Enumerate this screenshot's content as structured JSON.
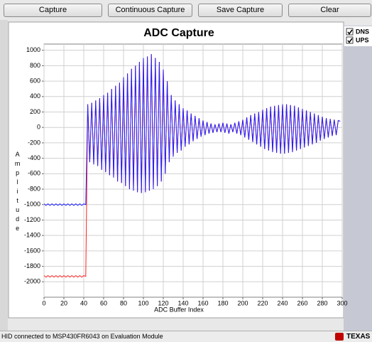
{
  "buttons": [
    "Capture",
    "Continuous Capture",
    "Save Capture",
    "Clear"
  ],
  "chart_data": {
    "type": "line",
    "title": "ADC Capture",
    "x_label": "ADC Buffer Index",
    "y_label": "Amplitude",
    "xlim": [
      0,
      300
    ],
    "ylim": [
      -2200,
      1080
    ],
    "xticks": [
      0,
      20,
      40,
      60,
      80,
      100,
      120,
      140,
      160,
      180,
      200,
      220,
      240,
      260,
      280,
      300
    ],
    "yticks": [
      -2000,
      -1800,
      -1600,
      -1400,
      -1200,
      -1000,
      -800,
      -600,
      -400,
      -200,
      0,
      200,
      400,
      600,
      800,
      1000
    ],
    "grid": true,
    "legend": "right",
    "x": [
      0,
      2,
      4,
      6,
      8,
      10,
      12,
      14,
      16,
      18,
      20,
      22,
      24,
      26,
      28,
      30,
      32,
      34,
      36,
      38,
      40,
      42,
      44,
      46,
      48,
      50,
      52,
      54,
      56,
      58,
      60,
      62,
      64,
      66,
      68,
      70,
      72,
      74,
      76,
      78,
      80,
      82,
      84,
      86,
      88,
      90,
      92,
      94,
      96,
      98,
      100,
      102,
      104,
      106,
      108,
      110,
      112,
      114,
      116,
      118,
      120,
      122,
      124,
      126,
      128,
      130,
      132,
      134,
      136,
      138,
      140,
      142,
      144,
      146,
      148,
      150,
      152,
      154,
      156,
      158,
      160,
      162,
      164,
      166,
      168,
      170,
      172,
      174,
      176,
      178,
      180,
      182,
      184,
      186,
      188,
      190,
      192,
      194,
      196,
      198,
      200,
      202,
      204,
      206,
      208,
      210,
      212,
      214,
      216,
      218,
      220,
      222,
      224,
      226,
      228,
      230,
      232,
      234,
      236,
      238,
      240,
      242,
      244,
      246,
      248,
      250,
      252,
      254,
      256,
      258,
      260,
      262,
      264,
      266,
      268,
      270,
      272,
      274,
      276,
      278,
      280,
      282,
      284,
      286,
      288,
      290,
      292,
      294,
      296,
      298
    ],
    "series": [
      {
        "name": "UPS",
        "color": "#ff2020",
        "values": [
          -1920,
          -1940,
          -1920,
          -1940,
          -1920,
          -1940,
          -1920,
          -1940,
          -1920,
          -1940,
          -1920,
          -1940,
          -1920,
          -1940,
          -1920,
          -1940,
          -1920,
          -1940,
          -1920,
          -1940,
          -1920,
          -1930,
          300,
          -450,
          320,
          -480,
          350,
          -500,
          380,
          -550,
          420,
          -580,
          450,
          -620,
          500,
          -650,
          540,
          -700,
          580,
          -720,
          650,
          -760,
          700,
          -800,
          760,
          -820,
          800,
          -840,
          850,
          -850,
          900,
          -840,
          920,
          -820,
          950,
          -800,
          900,
          -760,
          850,
          -700,
          750,
          -600,
          600,
          -450,
          420,
          -380,
          350,
          -330,
          300,
          -300,
          250,
          -250,
          220,
          -220,
          180,
          -180,
          150,
          -150,
          120,
          -120,
          90,
          -100,
          70,
          -80,
          50,
          -70,
          40,
          -60,
          50,
          -60,
          60,
          -70,
          50,
          -80,
          40,
          -60,
          60,
          -80,
          80,
          -100,
          100,
          -130,
          130,
          -160,
          160,
          -190,
          180,
          -220,
          200,
          -250,
          230,
          -280,
          250,
          -300,
          270,
          -320,
          280,
          -330,
          290,
          -340,
          300,
          -340,
          300,
          -330,
          290,
          -320,
          280,
          -300,
          260,
          -280,
          240,
          -260,
          220,
          -240,
          200,
          -220,
          180,
          -200,
          160,
          -170,
          140,
          -150,
          120,
          -130,
          110,
          -110,
          100,
          -100,
          90,
          80
        ]
      },
      {
        "name": "DNS",
        "color": "#2020ff",
        "values": [
          -990,
          -1010,
          -990,
          -1010,
          -990,
          -1010,
          -990,
          -1010,
          -990,
          -1010,
          -990,
          -1010,
          -990,
          -1010,
          -990,
          -1010,
          -990,
          -1010,
          -990,
          -1010,
          -990,
          -1000,
          300,
          -450,
          320,
          -480,
          350,
          -500,
          380,
          -550,
          420,
          -580,
          450,
          -620,
          500,
          -650,
          540,
          -700,
          580,
          -720,
          650,
          -760,
          700,
          -800,
          760,
          -820,
          800,
          -840,
          850,
          -850,
          900,
          -840,
          920,
          -820,
          950,
          -800,
          900,
          -760,
          850,
          -700,
          750,
          -600,
          600,
          -450,
          420,
          -380,
          350,
          -330,
          300,
          -300,
          250,
          -250,
          220,
          -220,
          180,
          -180,
          150,
          -150,
          120,
          -120,
          90,
          -100,
          70,
          -80,
          50,
          -70,
          40,
          -60,
          50,
          -60,
          60,
          -70,
          50,
          -80,
          40,
          -60,
          60,
          -80,
          80,
          -100,
          100,
          -130,
          130,
          -160,
          160,
          -190,
          180,
          -220,
          200,
          -250,
          230,
          -280,
          250,
          -300,
          270,
          -320,
          280,
          -330,
          290,
          -340,
          300,
          -340,
          300,
          -330,
          290,
          -320,
          280,
          -300,
          260,
          -280,
          240,
          -260,
          220,
          -240,
          200,
          -220,
          180,
          -200,
          160,
          -170,
          140,
          -150,
          120,
          -130,
          110,
          -110,
          100,
          -100,
          90,
          80
        ]
      }
    ]
  },
  "status": "HID connected to MSP430FR6043 on Evaluation Module",
  "logo": "TEXAS IN"
}
